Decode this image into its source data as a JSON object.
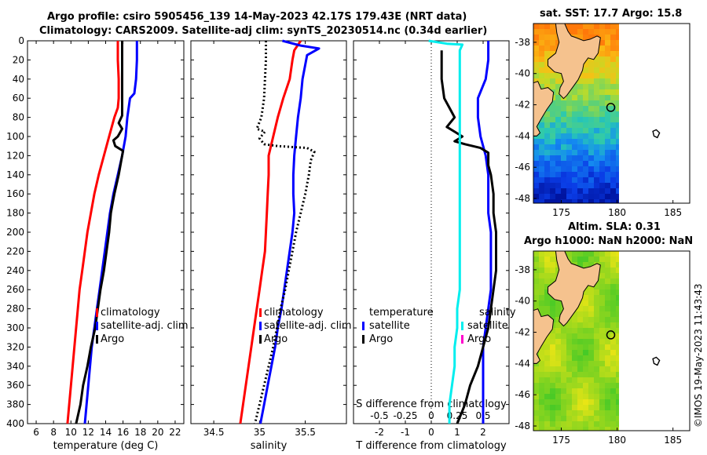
{
  "header": {
    "title_line1": "Argo profile: csiro 5905456_139 14-May-2023 42.17S 179.43E (NRT data)",
    "title_line2": "Climatology: CARS2009. Satellite-adj clim: synTS_20230514.nc (0.34d earlier)",
    "watermark": "©IMOS 19-May-2023 11:43:43"
  },
  "colors": {
    "climatology": "#ff0000",
    "satellite": "#0000ff",
    "argo": "#000000",
    "salinity_diff": "#00eeee",
    "argo_salinity_diff": "#ff00cc",
    "land": "#f5c28e",
    "map_background": "#ffffff"
  },
  "chart_data": [
    {
      "type": "line",
      "id": "temperature",
      "xlabel": "temperature (deg C)",
      "ylabel": "",
      "xlim": [
        5,
        23
      ],
      "ylim": [
        400,
        0
      ],
      "x_ticks": [
        6,
        8,
        10,
        12,
        14,
        16,
        18,
        20,
        22
      ],
      "y_ticks": [
        0,
        20,
        40,
        60,
        80,
        100,
        120,
        140,
        160,
        180,
        200,
        220,
        240,
        260,
        280,
        300,
        320,
        340,
        360,
        380,
        400
      ],
      "legend": [
        "climatology",
        "satellite-adj. clim",
        "Argo"
      ],
      "series": [
        {
          "name": "climatology",
          "color": "red",
          "points": [
            [
              15.4,
              0
            ],
            [
              15.4,
              20
            ],
            [
              15.5,
              40
            ],
            [
              15.5,
              60
            ],
            [
              15.4,
              70
            ],
            [
              15.0,
              80
            ],
            [
              14.4,
              100
            ],
            [
              13.8,
              120
            ],
            [
              13.2,
              140
            ],
            [
              12.7,
              160
            ],
            [
              12.3,
              180
            ],
            [
              11.9,
              200
            ],
            [
              11.6,
              220
            ],
            [
              11.3,
              240
            ],
            [
              11.0,
              260
            ],
            [
              10.8,
              280
            ],
            [
              10.6,
              300
            ],
            [
              10.4,
              320
            ],
            [
              10.2,
              340
            ],
            [
              10.0,
              360
            ],
            [
              9.8,
              380
            ],
            [
              9.6,
              400
            ]
          ]
        },
        {
          "name": "satellite-adj. clim",
          "color": "blue",
          "points": [
            [
              17.6,
              0
            ],
            [
              17.6,
              20
            ],
            [
              17.5,
              40
            ],
            [
              17.3,
              55
            ],
            [
              16.8,
              60
            ],
            [
              16.5,
              80
            ],
            [
              16.3,
              100
            ],
            [
              15.9,
              120
            ],
            [
              15.4,
              140
            ],
            [
              14.9,
              160
            ],
            [
              14.5,
              180
            ],
            [
              14.2,
              200
            ],
            [
              13.9,
              220
            ],
            [
              13.6,
              240
            ],
            [
              13.3,
              260
            ],
            [
              13.0,
              280
            ],
            [
              12.7,
              300
            ],
            [
              12.4,
              320
            ],
            [
              12.2,
              340
            ],
            [
              12.0,
              360
            ],
            [
              11.8,
              380
            ],
            [
              11.6,
              400
            ]
          ]
        },
        {
          "name": "Argo",
          "color": "black",
          "points": [
            [
              15.9,
              0
            ],
            [
              15.9,
              20
            ],
            [
              15.9,
              40
            ],
            [
              15.9,
              60
            ],
            [
              15.9,
              78
            ],
            [
              15.5,
              86
            ],
            [
              15.9,
              92
            ],
            [
              15.4,
              100
            ],
            [
              14.9,
              104
            ],
            [
              15.1,
              110
            ],
            [
              16.0,
              115
            ],
            [
              15.8,
              125
            ],
            [
              15.5,
              140
            ],
            [
              15.0,
              160
            ],
            [
              14.8,
              170
            ],
            [
              14.6,
              180
            ],
            [
              14.4,
              200
            ],
            [
              14.1,
              220
            ],
            [
              13.8,
              240
            ],
            [
              13.4,
              260
            ],
            [
              13.1,
              280
            ],
            [
              12.8,
              300
            ],
            [
              12.3,
              320
            ],
            [
              11.9,
              340
            ],
            [
              11.4,
              360
            ],
            [
              11.1,
              380
            ],
            [
              10.6,
              400
            ]
          ]
        }
      ]
    },
    {
      "type": "line",
      "id": "salinity",
      "xlabel": "salinity",
      "ylabel": "",
      "xlim": [
        34.25,
        35.95
      ],
      "ylim": [
        400,
        0
      ],
      "x_ticks": [
        34.5,
        35,
        35.5
      ],
      "legend": [
        "climatology",
        "satellite-adj. clim",
        "Argo"
      ],
      "series": [
        {
          "name": "climatology",
          "color": "red",
          "points": [
            [
              35.45,
              0
            ],
            [
              35.38,
              10
            ],
            [
              35.36,
              20
            ],
            [
              35.33,
              40
            ],
            [
              35.26,
              60
            ],
            [
              35.2,
              80
            ],
            [
              35.15,
              100
            ],
            [
              35.1,
              120
            ],
            [
              35.1,
              140
            ],
            [
              35.09,
              160
            ],
            [
              35.08,
              180
            ],
            [
              35.07,
              200
            ],
            [
              35.06,
              220
            ],
            [
              35.03,
              240
            ],
            [
              35.0,
              260
            ],
            [
              34.97,
              280
            ],
            [
              34.94,
              300
            ],
            [
              34.91,
              320
            ],
            [
              34.88,
              340
            ],
            [
              34.85,
              360
            ],
            [
              34.82,
              380
            ],
            [
              34.79,
              400
            ]
          ]
        },
        {
          "name": "satellite-adj. clim",
          "color": "blue",
          "points": [
            [
              35.25,
              0
            ],
            [
              35.45,
              5
            ],
            [
              35.65,
              8
            ],
            [
              35.52,
              15
            ],
            [
              35.5,
              25
            ],
            [
              35.47,
              40
            ],
            [
              35.45,
              60
            ],
            [
              35.42,
              80
            ],
            [
              35.4,
              100
            ],
            [
              35.38,
              120
            ],
            [
              35.37,
              140
            ],
            [
              35.37,
              160
            ],
            [
              35.38,
              180
            ],
            [
              35.36,
              200
            ],
            [
              35.33,
              220
            ],
            [
              35.3,
              240
            ],
            [
              35.27,
              260
            ],
            [
              35.24,
              280
            ],
            [
              35.2,
              300
            ],
            [
              35.17,
              320
            ],
            [
              35.13,
              340
            ],
            [
              35.09,
              360
            ],
            [
              35.05,
              380
            ],
            [
              35.01,
              400
            ]
          ]
        },
        {
          "name": "Argo",
          "color": "black",
          "dashed": true,
          "points": [
            [
              35.07,
              0
            ],
            [
              35.07,
              20
            ],
            [
              35.06,
              40
            ],
            [
              35.05,
              60
            ],
            [
              35.02,
              80
            ],
            [
              34.97,
              92
            ],
            [
              35.06,
              95
            ],
            [
              35.0,
              102
            ],
            [
              35.05,
              108
            ],
            [
              35.2,
              110
            ],
            [
              35.52,
              112
            ],
            [
              35.6,
              116
            ],
            [
              35.56,
              125
            ],
            [
              35.54,
              140
            ],
            [
              35.5,
              160
            ],
            [
              35.45,
              180
            ],
            [
              35.4,
              200
            ],
            [
              35.36,
              220
            ],
            [
              35.32,
              240
            ],
            [
              35.28,
              260
            ],
            [
              35.23,
              280
            ],
            [
              35.19,
              300
            ],
            [
              35.15,
              320
            ],
            [
              35.1,
              340
            ],
            [
              35.05,
              360
            ],
            [
              35.0,
              380
            ],
            [
              34.95,
              400
            ]
          ]
        }
      ]
    },
    {
      "type": "line",
      "id": "difference",
      "xlabel": "T difference from climatology",
      "xlabel_top": "S difference from climatology",
      "ylabel": "",
      "xlim": [
        -3,
        3
      ],
      "ylim": [
        400,
        0
      ],
      "x_ticks": [
        -2,
        -1,
        0,
        1,
        2
      ],
      "x_ticks_top": [
        {
          "label": "-0.5",
          "at": -2
        },
        {
          "label": "-0.25",
          "at": -1
        },
        {
          "label": "0",
          "at": 0
        },
        {
          "label": "0.25",
          "at": 1
        },
        {
          "label": "0.5",
          "at": 2
        }
      ],
      "legend_left": [
        "temperature",
        "satellite",
        "Argo"
      ],
      "legend_right": [
        "salinity",
        "satellite",
        "Argo"
      ],
      "series": [
        {
          "name": "temperature satellite",
          "color": "blue",
          "points": [
            [
              2.2,
              0
            ],
            [
              2.2,
              20
            ],
            [
              2.1,
              40
            ],
            [
              1.8,
              60
            ],
            [
              1.8,
              80
            ],
            [
              1.9,
              100
            ],
            [
              2.1,
              120
            ],
            [
              2.2,
              140
            ],
            [
              2.2,
              160
            ],
            [
              2.2,
              180
            ],
            [
              2.3,
              200
            ],
            [
              2.3,
              220
            ],
            [
              2.3,
              240
            ],
            [
              2.3,
              260
            ],
            [
              2.2,
              280
            ],
            [
              2.1,
              300
            ],
            [
              2.0,
              320
            ],
            [
              2.0,
              340
            ],
            [
              2.0,
              360
            ],
            [
              2.0,
              380
            ],
            [
              2.0,
              400
            ]
          ]
        },
        {
          "name": "temperature Argo",
          "color": "black",
          "points": [
            [
              0.4,
              10
            ],
            [
              0.4,
              20
            ],
            [
              0.4,
              40
            ],
            [
              0.5,
              60
            ],
            [
              0.7,
              70
            ],
            [
              0.9,
              80
            ],
            [
              0.6,
              90
            ],
            [
              0.9,
              95
            ],
            [
              1.2,
              100
            ],
            [
              0.9,
              105
            ],
            [
              1.3,
              108
            ],
            [
              1.9,
              112
            ],
            [
              2.2,
              117
            ],
            [
              2.2,
              130
            ],
            [
              2.3,
              140
            ],
            [
              2.4,
              160
            ],
            [
              2.4,
              180
            ],
            [
              2.5,
              200
            ],
            [
              2.5,
              220
            ],
            [
              2.5,
              240
            ],
            [
              2.4,
              260
            ],
            [
              2.3,
              280
            ],
            [
              2.2,
              300
            ],
            [
              2.0,
              320
            ],
            [
              1.8,
              340
            ],
            [
              1.5,
              360
            ],
            [
              1.3,
              380
            ],
            [
              1.0,
              400
            ]
          ]
        },
        {
          "name": "salinity satellite",
          "color": "cyan",
          "points": [
            [
              -0.1,
              0
            ],
            [
              0.6,
              3
            ],
            [
              1.2,
              4
            ],
            [
              1.1,
              10
            ],
            [
              1.1,
              20
            ],
            [
              1.1,
              40
            ],
            [
              1.1,
              60
            ],
            [
              1.1,
              80
            ],
            [
              1.1,
              100
            ],
            [
              1.1,
              120
            ],
            [
              1.1,
              140
            ],
            [
              1.1,
              160
            ],
            [
              1.1,
              180
            ],
            [
              1.1,
              200
            ],
            [
              1.1,
              220
            ],
            [
              1.1,
              240
            ],
            [
              1.1,
              260
            ],
            [
              1.0,
              280
            ],
            [
              1.0,
              300
            ],
            [
              0.9,
              320
            ],
            [
              0.9,
              340
            ],
            [
              0.8,
              360
            ],
            [
              0.7,
              380
            ],
            [
              0.7,
              400
            ]
          ]
        }
      ]
    },
    {
      "type": "heatmap",
      "id": "sst_map",
      "title": "sat. SST: 17.7 Argo: 15.8",
      "x_ticks": [
        175,
        180,
        185
      ],
      "y_ticks": [
        -38,
        -40,
        -42,
        -44,
        -46,
        -48
      ],
      "xlim": [
        172.5,
        186.5
      ],
      "ylim": [
        -48.3,
        -36.8
      ],
      "data_extent_lon": [
        172.5,
        180
      ],
      "argo_marker": {
        "lon": 179.43,
        "lat": -42.17
      }
    },
    {
      "type": "heatmap",
      "id": "sla_map",
      "title_line1": "Altim. SLA: 0.31",
      "title_line2": "Argo h1000: NaN h2000: NaN",
      "x_ticks": [
        175,
        180,
        185
      ],
      "y_ticks": [
        -38,
        -40,
        -42,
        -44,
        -46,
        -48
      ],
      "xlim": [
        172.5,
        186.5
      ],
      "ylim": [
        -48.3,
        -36.8
      ],
      "data_extent_lon": [
        172.5,
        180
      ],
      "argo_marker": {
        "lon": 179.43,
        "lat": -42.17
      }
    }
  ]
}
